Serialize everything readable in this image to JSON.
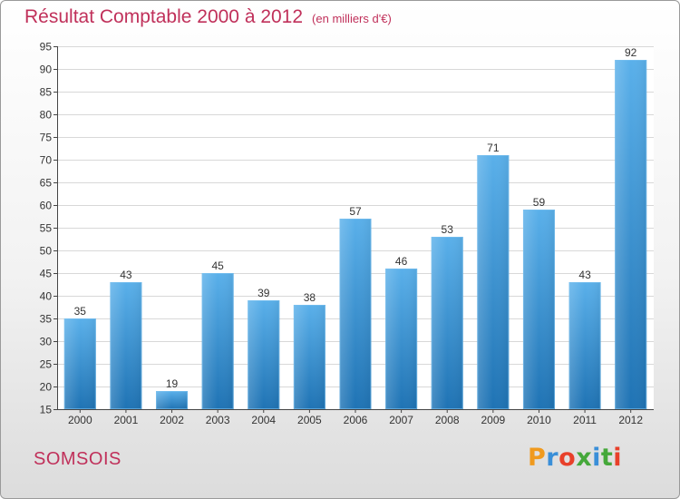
{
  "header": {
    "title": "Résultat Comptable 2000 à 2012",
    "subtitle": "(en milliers d'€)"
  },
  "footer": {
    "commune": "SOMSOIS",
    "logo_text": "Proxiti"
  },
  "colors": {
    "title": "#c0305a",
    "bar_top": "#5ab0ea",
    "bar_bottom": "#1f73b4",
    "logo": [
      "#f09a1e",
      "#3a8fd8",
      "#e8402a",
      "#45a83a",
      "#3a8fd8",
      "#45a83a",
      "#e8402a"
    ]
  },
  "chart_data": {
    "type": "bar",
    "categories": [
      "2000",
      "2001",
      "2002",
      "2003",
      "2004",
      "2005",
      "2006",
      "2007",
      "2008",
      "2009",
      "2010",
      "2011",
      "2012"
    ],
    "values": [
      35,
      43,
      19,
      45,
      39,
      38,
      57,
      46,
      53,
      71,
      59,
      43,
      92
    ],
    "ylim": [
      15,
      95
    ],
    "ytick_step": 5,
    "grid": true,
    "title": "Résultat Comptable 2000 à 2012",
    "xlabel": "",
    "ylabel": ""
  }
}
